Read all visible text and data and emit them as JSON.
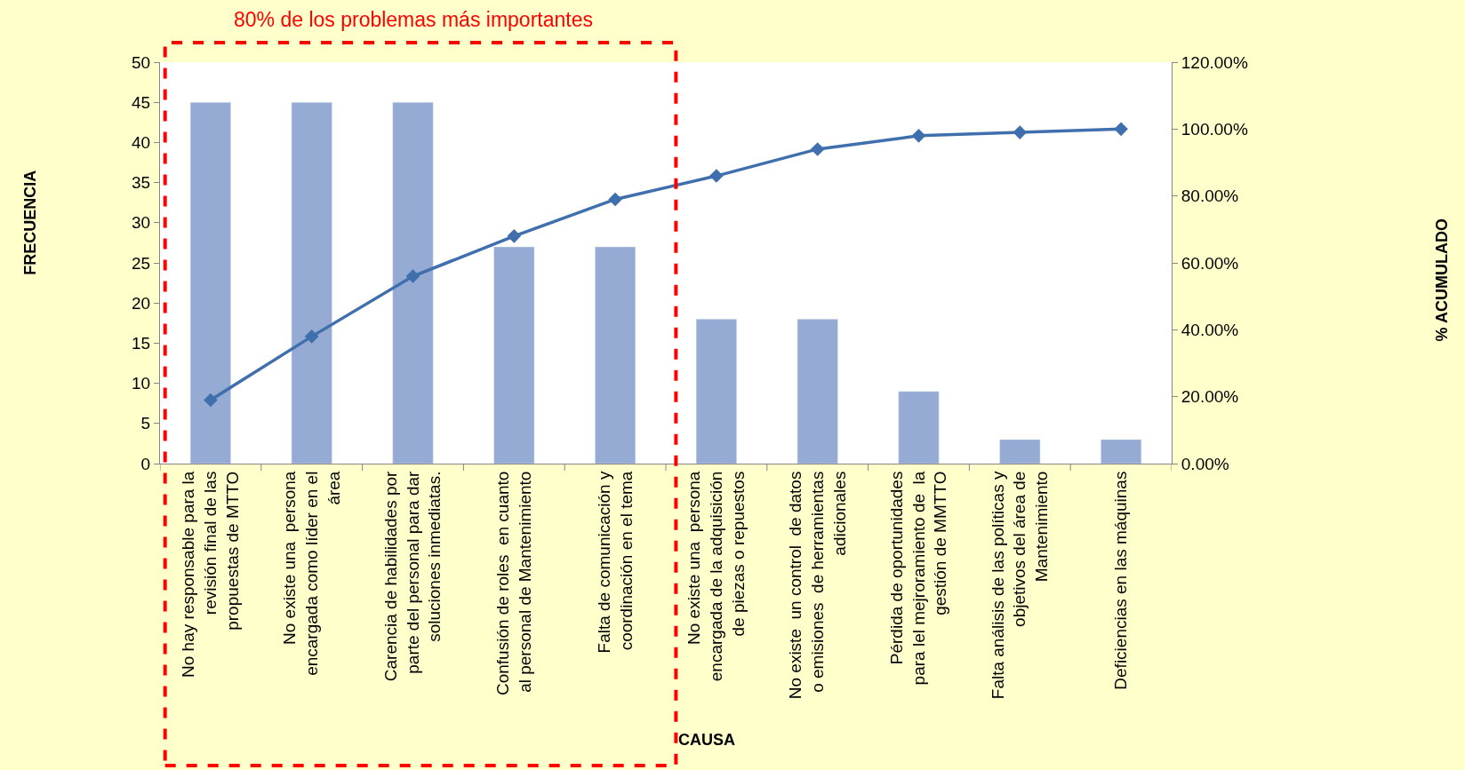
{
  "chart_data": {
    "type": "bar",
    "title": "80% de los problemas más importantes",
    "xlabel": "CAUSA",
    "annotations": [
      "FRECUENCIA",
      "% ACUMULADO"
    ],
    "categories": [
      "No hay responsable para la\nrevisión final de las\npropuestas de MTTO",
      "No existe una  persona\nencargada como líder en el\nárea",
      "Carencia de habilidades por\nparte del personal para dar\nsoluciones inmediatas.",
      "Confusión de roles  en cuanto\nal personal de Mantenimiento",
      "Falta de comunicación y\ncoordinación en el tema",
      "No existe una  persona\nencargada de la adquisición\nde piezas o repuestos",
      "No existe  un control  de datos\no emisiones  de herramientas\nadicionales",
      "Pérdida de oportunidades\npara lel mejroramiento de  la\ngestión de MMTTO",
      "Falta análisis de las políticas y\nobjetivos del área de\nMantenimiento",
      "Deficiencias en las máquinas"
    ],
    "series": [
      {
        "color": "#95abd3",
        "values": [
          45,
          45,
          45,
          27,
          27,
          18,
          18,
          9,
          3,
          3
        ]
      },
      {
        "type": "line",
        "axis": "y2",
        "color": "#3f6fad",
        "line_style": "solid",
        "values": [
          19,
          38,
          56,
          68,
          79,
          86,
          94,
          98,
          99,
          100
        ]
      }
    ],
    "ylim": [
      0,
      50
    ],
    "yticks": [
      0,
      5,
      10,
      15,
      20,
      25,
      30,
      35,
      40,
      45,
      50
    ],
    "y2lim": [
      0,
      120
    ],
    "y2ticks": [
      {
        "value": 0,
        "label": "0.00%"
      },
      {
        "value": 20,
        "label": "20.00%"
      },
      {
        "value": 40,
        "label": "40.00%"
      },
      {
        "value": 60,
        "label": "60.00%"
      },
      {
        "value": 80,
        "label": "80.00%"
      },
      {
        "value": 100,
        "label": "100.00%"
      },
      {
        "value": 120,
        "label": "120.00%"
      }
    ],
    "marker": "diamond"
  }
}
